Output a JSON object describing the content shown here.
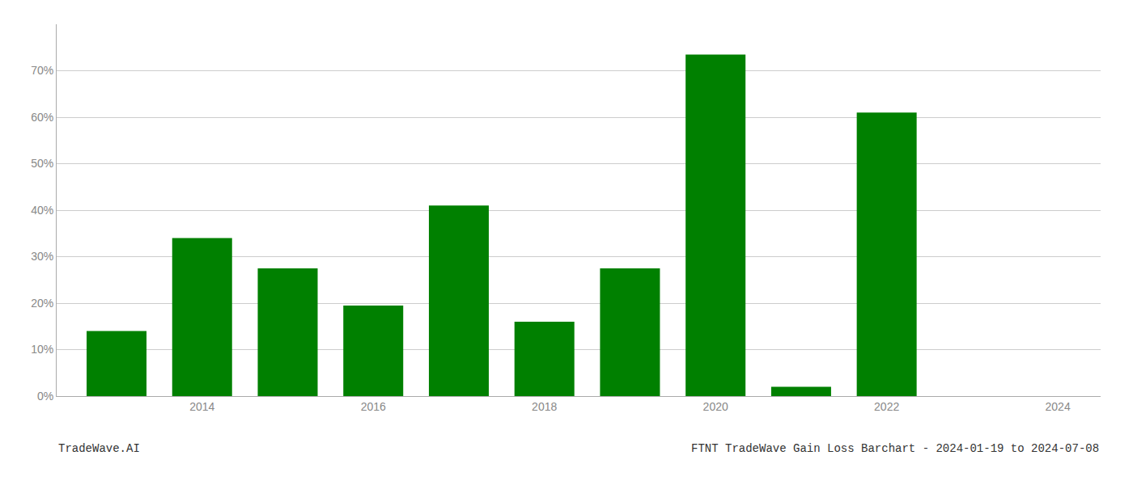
{
  "chart_data": {
    "type": "bar",
    "title": "FTNT TradeWave Gain Loss Barchart - 2024-01-19 to 2024-07-08",
    "annotations": [
      "TradeWave.AI"
    ],
    "x": [
      2013,
      2014,
      2015,
      2016,
      2017,
      2018,
      2019,
      2020,
      2021,
      2022,
      2023
    ],
    "values": [
      14.0,
      34.0,
      27.5,
      19.5,
      41.0,
      16.0,
      27.5,
      73.5,
      2.0,
      61.0,
      0.0
    ],
    "color": "#008000",
    "xlim": [
      2012.3,
      2024.5
    ],
    "xticks": [
      2014,
      2016,
      2018,
      2020,
      2022,
      2024
    ],
    "ylim": [
      0,
      80
    ],
    "yticks": [
      {
        "value": 0,
        "label": "0%"
      },
      {
        "value": 10,
        "label": "10%"
      },
      {
        "value": 20,
        "label": "20%"
      },
      {
        "value": 30,
        "label": "30%"
      },
      {
        "value": 40,
        "label": "40%"
      },
      {
        "value": 50,
        "label": "50%"
      },
      {
        "value": 60,
        "label": "60%"
      },
      {
        "value": 70,
        "label": "70%"
      }
    ],
    "grid": "y"
  }
}
